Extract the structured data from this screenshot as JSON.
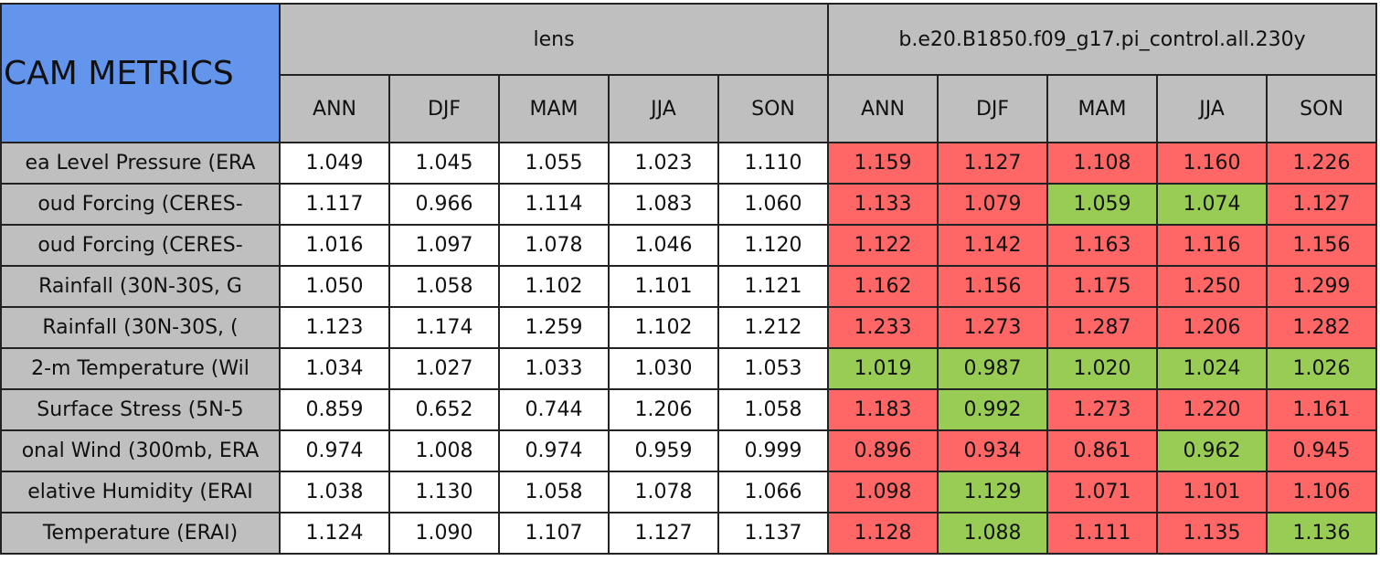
{
  "header": {
    "title": "CAM METRICS",
    "groups": [
      {
        "name": "lens",
        "color": "#bfbfbf",
        "columns": [
          "ANN",
          "DJF",
          "MAM",
          "JJA",
          "SON"
        ]
      },
      {
        "name": "b.e20.B1850.f09_g17.pi_control.all.230y",
        "color": "#bfbfbf",
        "columns": [
          "ANN",
          "DJF",
          "MAM",
          "JJA",
          "SON"
        ]
      }
    ],
    "title_color": "#6495ed",
    "label_color": "#bfbfbf"
  },
  "table": {
    "rows": [
      {
        "label": "ea Level Pressure (ERA",
        "values": [
          "1.049",
          "1.045",
          "1.055",
          "1.023",
          "1.110",
          "1.159",
          "1.127",
          "1.108",
          "1.160",
          "1.226"
        ],
        "colors": [
          "#ffffff",
          "#ffffff",
          "#ffffff",
          "#ffffff",
          "#ffffff",
          "#ff6666",
          "#ff6666",
          "#ff6666",
          "#ff6666",
          "#ff6666"
        ]
      },
      {
        "label": "oud Forcing (CERES-",
        "values": [
          "1.117",
          "0.966",
          "1.114",
          "1.083",
          "1.060",
          "1.133",
          "1.079",
          "1.059",
          "1.074",
          "1.127"
        ],
        "colors": [
          "#ffffff",
          "#ffffff",
          "#ffffff",
          "#ffffff",
          "#ffffff",
          "#ff6666",
          "#ff6666",
          "#99cc55",
          "#99cc55",
          "#ff6666"
        ]
      },
      {
        "label": "oud Forcing (CERES-",
        "values": [
          "1.016",
          "1.097",
          "1.078",
          "1.046",
          "1.120",
          "1.122",
          "1.142",
          "1.163",
          "1.116",
          "1.156"
        ],
        "colors": [
          "#ffffff",
          "#ffffff",
          "#ffffff",
          "#ffffff",
          "#ffffff",
          "#ff6666",
          "#ff6666",
          "#ff6666",
          "#ff6666",
          "#ff6666"
        ]
      },
      {
        "label": "Rainfall (30N-30S, G",
        "values": [
          "1.050",
          "1.058",
          "1.102",
          "1.101",
          "1.121",
          "1.162",
          "1.156",
          "1.175",
          "1.250",
          "1.299"
        ],
        "colors": [
          "#ffffff",
          "#ffffff",
          "#ffffff",
          "#ffffff",
          "#ffffff",
          "#ff6666",
          "#ff6666",
          "#ff6666",
          "#ff6666",
          "#ff6666"
        ]
      },
      {
        "label": "Rainfall (30N-30S, (",
        "values": [
          "1.123",
          "1.174",
          "1.259",
          "1.102",
          "1.212",
          "1.233",
          "1.273",
          "1.287",
          "1.206",
          "1.282"
        ],
        "colors": [
          "#ffffff",
          "#ffffff",
          "#ffffff",
          "#ffffff",
          "#ffffff",
          "#ff6666",
          "#ff6666",
          "#ff6666",
          "#ff6666",
          "#ff6666"
        ]
      },
      {
        "label": "2-m Temperature (Wil",
        "values": [
          "1.034",
          "1.027",
          "1.033",
          "1.030",
          "1.053",
          "1.019",
          "0.987",
          "1.020",
          "1.024",
          "1.026"
        ],
        "colors": [
          "#ffffff",
          "#ffffff",
          "#ffffff",
          "#ffffff",
          "#ffffff",
          "#99cc55",
          "#99cc55",
          "#99cc55",
          "#99cc55",
          "#99cc55"
        ]
      },
      {
        "label": "Surface Stress (5N-5",
        "values": [
          "0.859",
          "0.652",
          "0.744",
          "1.206",
          "1.058",
          "1.183",
          "0.992",
          "1.273",
          "1.220",
          "1.161"
        ],
        "colors": [
          "#ffffff",
          "#ffffff",
          "#ffffff",
          "#ffffff",
          "#ffffff",
          "#ff6666",
          "#99cc55",
          "#ff6666",
          "#ff6666",
          "#ff6666"
        ]
      },
      {
        "label": "onal Wind (300mb, ERA",
        "values": [
          "0.974",
          "1.008",
          "0.974",
          "0.959",
          "0.999",
          "0.896",
          "0.934",
          "0.861",
          "0.962",
          "0.945"
        ],
        "colors": [
          "#ffffff",
          "#ffffff",
          "#ffffff",
          "#ffffff",
          "#ffffff",
          "#ff6666",
          "#ff6666",
          "#ff6666",
          "#99cc55",
          "#ff6666"
        ]
      },
      {
        "label": "elative Humidity (ERAI",
        "values": [
          "1.038",
          "1.130",
          "1.058",
          "1.078",
          "1.066",
          "1.098",
          "1.129",
          "1.071",
          "1.101",
          "1.106"
        ],
        "colors": [
          "#ffffff",
          "#ffffff",
          "#ffffff",
          "#ffffff",
          "#ffffff",
          "#ff6666",
          "#99cc55",
          "#ff6666",
          "#ff6666",
          "#ff6666"
        ]
      },
      {
        "label": "Temperature (ERAI)",
        "values": [
          "1.124",
          "1.090",
          "1.107",
          "1.127",
          "1.137",
          "1.128",
          "1.088",
          "1.111",
          "1.135",
          "1.136"
        ],
        "colors": [
          "#ffffff",
          "#ffffff",
          "#ffffff",
          "#ffffff",
          "#ffffff",
          "#ff6666",
          "#99cc55",
          "#ff6666",
          "#ff6666",
          "#99cc55"
        ]
      }
    ]
  }
}
